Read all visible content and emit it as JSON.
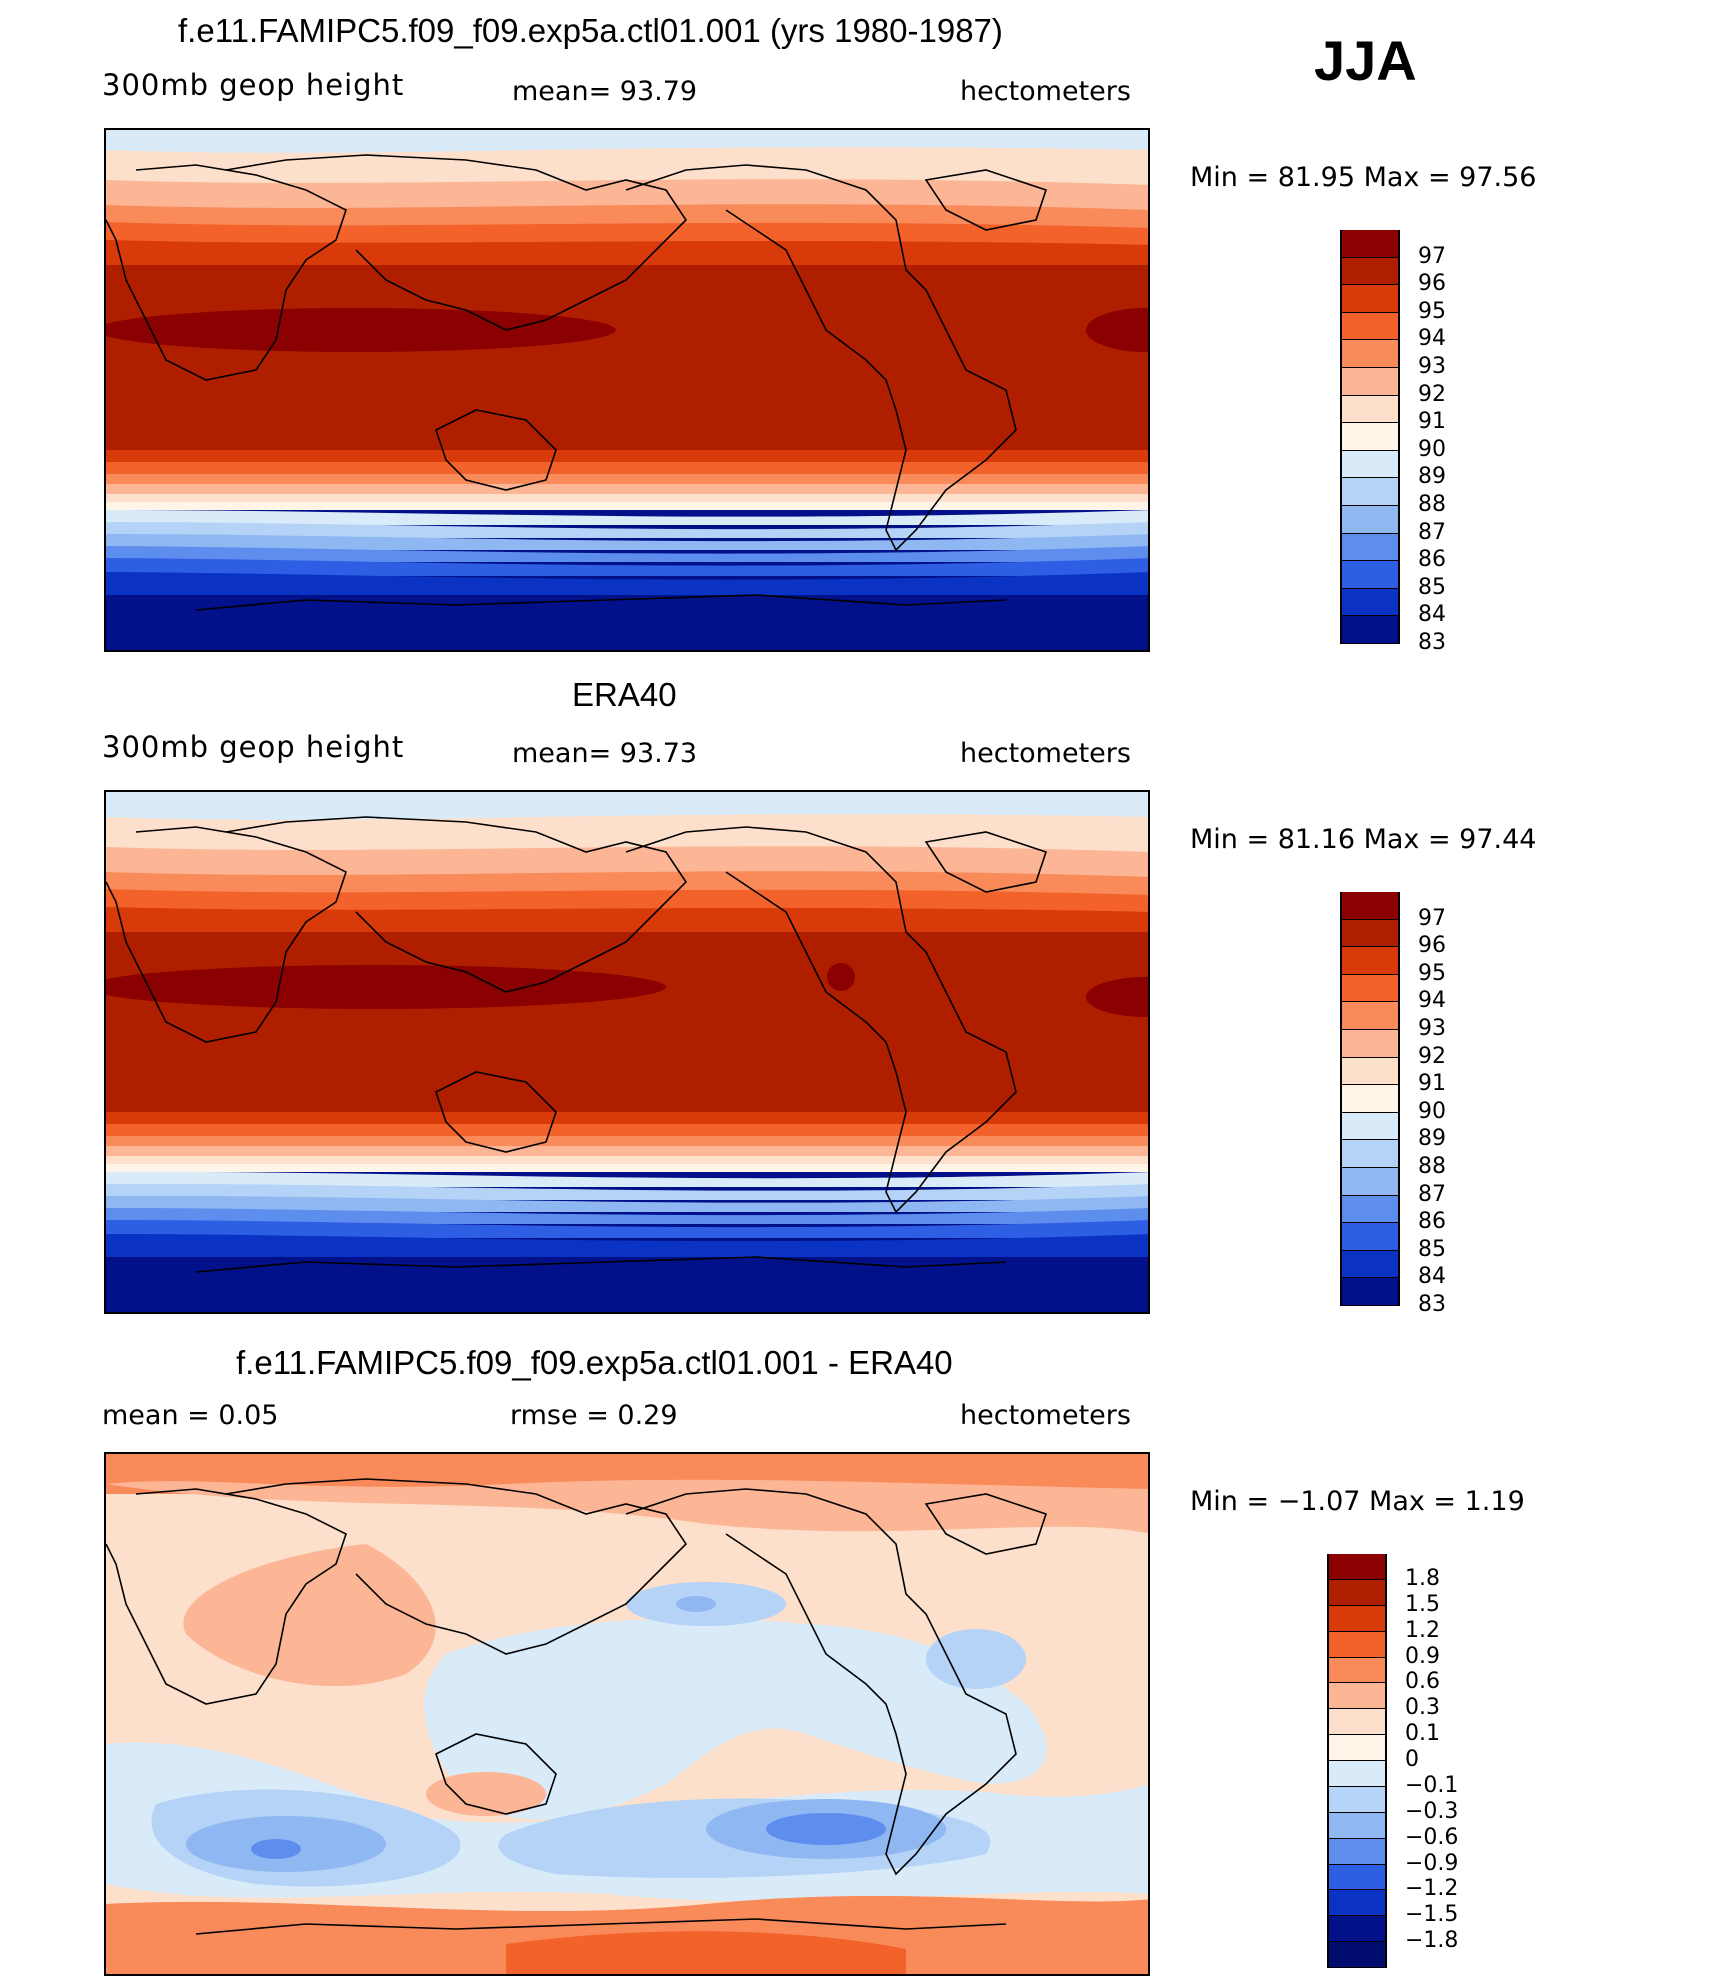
{
  "season": "JJA",
  "panels": [
    {
      "title": "f.e11.FAMIPC5.f09_f09.exp5a.ctl01.001 (yrs 1980-1987)",
      "left_label": "300mb  geop  height",
      "center_label": "mean=   93.79",
      "units": "hectometers",
      "minmax": "Min  =    81.95  Max  =    97.56",
      "levels": [
        "97",
        "96",
        "95",
        "94",
        "93",
        "92",
        "91",
        "90",
        "89",
        "88",
        "87",
        "86",
        "85",
        "84",
        "83"
      ],
      "colors": [
        "#8b0000",
        "#b01e00",
        "#d83a0a",
        "#f2622a",
        "#f98a5a",
        "#fcb696",
        "#fde0cb",
        "#fef4e8",
        "#d9eaf9",
        "#b4d3f6",
        "#8fb8f2",
        "#5d8ded",
        "#2e5ee3",
        "#0a33c3",
        "#02108a"
      ]
    },
    {
      "title": "ERA40",
      "left_label": "300mb  geop  height",
      "center_label": "mean=   93.73",
      "units": "hectometers",
      "minmax": "Min  =    81.16  Max  =    97.44",
      "levels": [
        "97",
        "96",
        "95",
        "94",
        "93",
        "92",
        "91",
        "90",
        "89",
        "88",
        "87",
        "86",
        "85",
        "84",
        "83"
      ],
      "colors": [
        "#8b0000",
        "#b01e00",
        "#d83a0a",
        "#f2622a",
        "#f98a5a",
        "#fcb696",
        "#fde0cb",
        "#fef4e8",
        "#d9eaf9",
        "#b4d3f6",
        "#8fb8f2",
        "#5d8ded",
        "#2e5ee3",
        "#0a33c3",
        "#02108a"
      ]
    },
    {
      "title": "f.e11.FAMIPC5.f09_f09.exp5a.ctl01.001 - ERA40",
      "left_label": "mean  =     0.05",
      "center_label": "rmse  =     0.29",
      "units": "hectometers",
      "minmax": "Min  =   −1.07  Max  =     1.19",
      "levels": [
        "1.8",
        "1.5",
        "1.2",
        "0.9",
        "0.6",
        "0.3",
        "0.1",
        "0",
        "−0.1",
        "−0.3",
        "−0.6",
        "−0.9",
        "−1.2",
        "−1.5",
        "−1.8"
      ],
      "colors": [
        "#8b0000",
        "#b01e00",
        "#d83a0a",
        "#f2622a",
        "#f98a5a",
        "#fcb696",
        "#fde0cb",
        "#fef4e8",
        "#d9eaf9",
        "#b4d3f6",
        "#8fb8f2",
        "#5d8ded",
        "#2e5ee3",
        "#0a33c3",
        "#02108a",
        "#000c6e"
      ]
    }
  ]
}
